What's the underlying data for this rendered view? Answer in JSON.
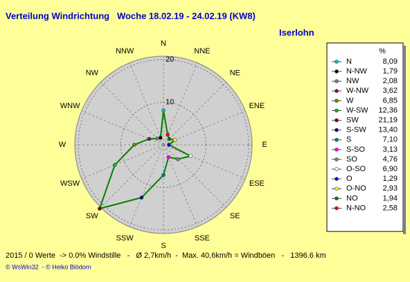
{
  "chart_data": {
    "type": "radar",
    "title": "Verteilung Windrichtung   Woche 18.02.19 - 24.02.19 (KW8)",
    "subtitle": "Iserlohn",
    "directions": [
      "N",
      "NNE",
      "NE",
      "ENE",
      "E",
      "ESE",
      "SE",
      "SSE",
      "S",
      "SSW",
      "SW",
      "WSW",
      "W",
      "WNW",
      "NW",
      "NNW"
    ],
    "legend_title": "%",
    "categories": [
      "N",
      "N-NW",
      "NW",
      "W-NW",
      "W",
      "W-SW",
      "SW",
      "S-SW",
      "S",
      "S-SO",
      "SO",
      "O-SO",
      "O",
      "O-NO",
      "NO",
      "N-NO"
    ],
    "values": [
      8.09,
      1.79,
      2.08,
      3.62,
      6.85,
      12.36,
      21.19,
      13.4,
      7.1,
      3.13,
      4.76,
      6.9,
      1.29,
      2.93,
      1.94,
      2.58
    ],
    "value_labels": [
      "8,09",
      "1,79",
      "2,08",
      "3,62",
      "6,85",
      "12,36",
      "21,19",
      "13,40",
      "7,10",
      "3,13",
      "4,76",
      "6,90",
      "1,29",
      "2,93",
      "1,94",
      "2,58"
    ],
    "colors": [
      "#00c0c0",
      "#000000",
      "#808080",
      "#800080",
      "#808000",
      "#00c000",
      "#800000",
      "#000080",
      "#008080",
      "#ff00ff",
      "#808080",
      "#ffffff",
      "#0000ff",
      "#ffff00",
      "#008000",
      "#ff0000"
    ],
    "line_color": "#008000",
    "rlim": [
      0,
      20
    ],
    "rticks": [
      10,
      20
    ],
    "footer": "2015 / 0 Werte  -> 0.0% Windstille   -   Ø 2,7km/h  -  Max. 40,6km/h = Windböen   -   1396.6 km",
    "credit": "© WsWin32  - © Heiko Blödorn"
  }
}
